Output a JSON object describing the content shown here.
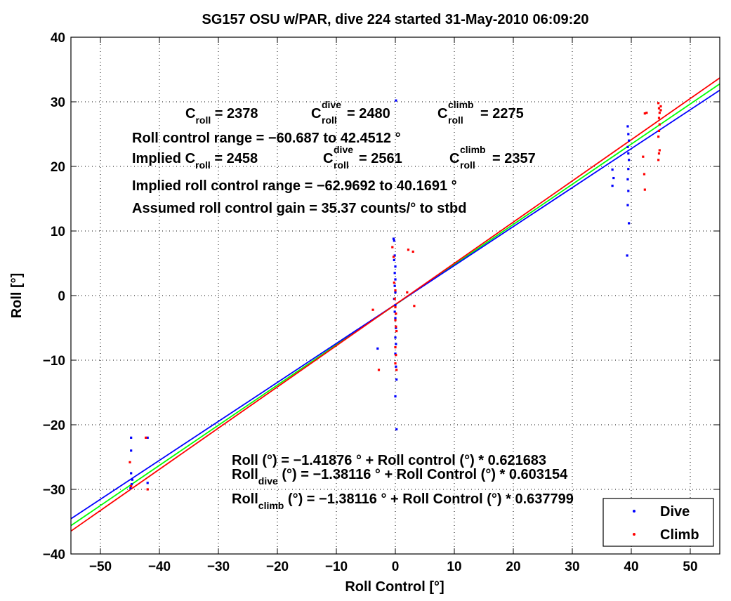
{
  "chart_data": {
    "type": "scatter",
    "title": "SG157 OSU w/PAR, dive 224 started 31-May-2010 06:09:20",
    "xlabel": "Roll Control [°]",
    "ylabel": "Roll [°]",
    "xlim": [
      -55,
      55
    ],
    "ylim": [
      -40,
      40
    ],
    "xticks": [
      -50,
      -40,
      -30,
      -20,
      -10,
      0,
      10,
      20,
      30,
      40,
      50
    ],
    "yticks": [
      -40,
      -30,
      -20,
      -10,
      0,
      10,
      20,
      30,
      40
    ],
    "grid": true,
    "legend_position": "bottom-right",
    "colors": {
      "dive": "#0000ff",
      "climb": "#ff0000",
      "combined_fit": "#00ff00"
    },
    "series": [
      {
        "name": "Dive",
        "color": "#0000ff",
        "points": [
          [
            -44.8,
            -22
          ],
          [
            -44.8,
            -24
          ],
          [
            -44.8,
            -27.5
          ],
          [
            -44.6,
            -28.5
          ],
          [
            -44.7,
            -29.2
          ],
          [
            -44.9,
            -29.8
          ],
          [
            -42.0,
            -22
          ],
          [
            -42.0,
            -29
          ],
          [
            -3.0,
            -8.2
          ],
          [
            -0.3,
            8.8
          ],
          [
            -0.2,
            8.5
          ],
          [
            -0.1,
            6.2
          ],
          [
            -0.2,
            5.5
          ],
          [
            0.0,
            4.5
          ],
          [
            0.1,
            30.2
          ],
          [
            -0.1,
            3.5
          ],
          [
            0.0,
            2.5
          ],
          [
            -0.1,
            1.5
          ],
          [
            0.0,
            0.5
          ],
          [
            -0.2,
            -0.5
          ],
          [
            0.0,
            -1.5
          ],
          [
            -0.1,
            -2.5
          ],
          [
            0.0,
            -3.5
          ],
          [
            0.1,
            -5
          ],
          [
            0.0,
            -6.5
          ],
          [
            0.1,
            -7.5
          ],
          [
            0.0,
            -9
          ],
          [
            0.1,
            -11
          ],
          [
            0.2,
            -13
          ],
          [
            0.0,
            -15.6
          ],
          [
            0.2,
            -20.7
          ],
          [
            36.8,
            19.5
          ],
          [
            36.8,
            17.0
          ],
          [
            37.0,
            18.2
          ],
          [
            39.4,
            26.2
          ],
          [
            39.5,
            25.0
          ],
          [
            39.6,
            24.0
          ],
          [
            39.4,
            23.0
          ],
          [
            39.5,
            22.0
          ],
          [
            39.6,
            21.0
          ],
          [
            39.5,
            19.6
          ],
          [
            39.4,
            18.0
          ],
          [
            39.5,
            16.2
          ],
          [
            39.4,
            14.0
          ],
          [
            39.6,
            11.2
          ],
          [
            39.3,
            6.2
          ]
        ]
      },
      {
        "name": "Climb",
        "color": "#ff0000",
        "points": [
          [
            -45.0,
            -25.8
          ],
          [
            -44.8,
            -29.5
          ],
          [
            -42.3,
            -22
          ],
          [
            -42.0,
            -30
          ],
          [
            -3.8,
            -2.2
          ],
          [
            -2.8,
            -11.5
          ],
          [
            -0.5,
            7.5
          ],
          [
            -0.3,
            6.0
          ],
          [
            -0.2,
            2.0
          ],
          [
            0.0,
            0.8
          ],
          [
            -0.1,
            -0.5
          ],
          [
            0.0,
            -1.8
          ],
          [
            0.1,
            -2.8
          ],
          [
            0.0,
            -3.8
          ],
          [
            0.1,
            -4.8
          ],
          [
            0.2,
            -5.5
          ],
          [
            0.0,
            -8
          ],
          [
            0.1,
            -9.2
          ],
          [
            0.0,
            -10.5
          ],
          [
            0.2,
            -11.5
          ],
          [
            2.0,
            0.5
          ],
          [
            2.2,
            7.1
          ],
          [
            3.0,
            6.8
          ],
          [
            3.2,
            -1.6
          ],
          [
            42.0,
            21.5
          ],
          [
            42.2,
            18.8
          ],
          [
            42.3,
            16.4
          ],
          [
            42.3,
            28.2
          ],
          [
            42.6,
            28.3
          ],
          [
            44.6,
            29.8
          ],
          [
            44.7,
            29.0
          ],
          [
            44.8,
            28.3
          ],
          [
            44.7,
            27.5
          ],
          [
            44.8,
            26.5
          ],
          [
            44.7,
            25.5
          ],
          [
            44.6,
            24.6
          ],
          [
            44.8,
            22.5
          ],
          [
            44.7,
            22.0
          ],
          [
            44.6,
            21.0
          ],
          [
            45.0,
            29.3
          ],
          [
            45.0,
            28.7
          ]
        ]
      }
    ],
    "fit_lines": [
      {
        "name": "Roll fit",
        "color": "#00ff00",
        "intercept": -1.41876,
        "slope": 0.621683
      },
      {
        "name": "Dive fit",
        "color": "#0000ff",
        "intercept": -1.38116,
        "slope": 0.603154
      },
      {
        "name": "Climb fit",
        "color": "#ff0000",
        "intercept": -1.38116,
        "slope": 0.637799
      }
    ],
    "legend": {
      "dive_label": "Dive",
      "climb_label": "Climb"
    },
    "annotations": {
      "c_roll": {
        "base": "C",
        "sub": "roll",
        "value": " = 2378"
      },
      "c_roll_dive": {
        "base": "C",
        "sub": "roll",
        "sup": "dive",
        "value": " = 2480"
      },
      "c_roll_climb": {
        "base": "C",
        "sub": "roll",
        "sup": "climb",
        "value": " = 2275"
      },
      "roll_control_range": "Roll control range = −60.687 to 42.4512 °",
      "implied_prefix": "Implied C",
      "implied_sub": "roll",
      "implied_value": " = 2458",
      "implied_dive": {
        "base": "C",
        "sub": "roll",
        "sup": "dive",
        "value": " = 2561"
      },
      "implied_climb": {
        "base": "C",
        "sub": "roll",
        "sup": "climb",
        "value": " = 2357"
      },
      "implied_range": "Implied roll control range = −62.9692 to 40.1691 °",
      "gain": "Assumed roll control gain = 35.37 counts/° to stbd",
      "fit_all": "Roll (°) = −1.41876 ° + Roll control (°) * 0.621683",
      "fit_dive": {
        "base": "Roll",
        "sub": "dive",
        "rest": " (°) = −1.38116 ° + Roll Control (°) * 0.603154"
      },
      "fit_climb": {
        "base": "Roll",
        "sub": "climb",
        "rest": " (°) = −1.38116 ° + Roll Control (°) * 0.637799"
      }
    }
  }
}
